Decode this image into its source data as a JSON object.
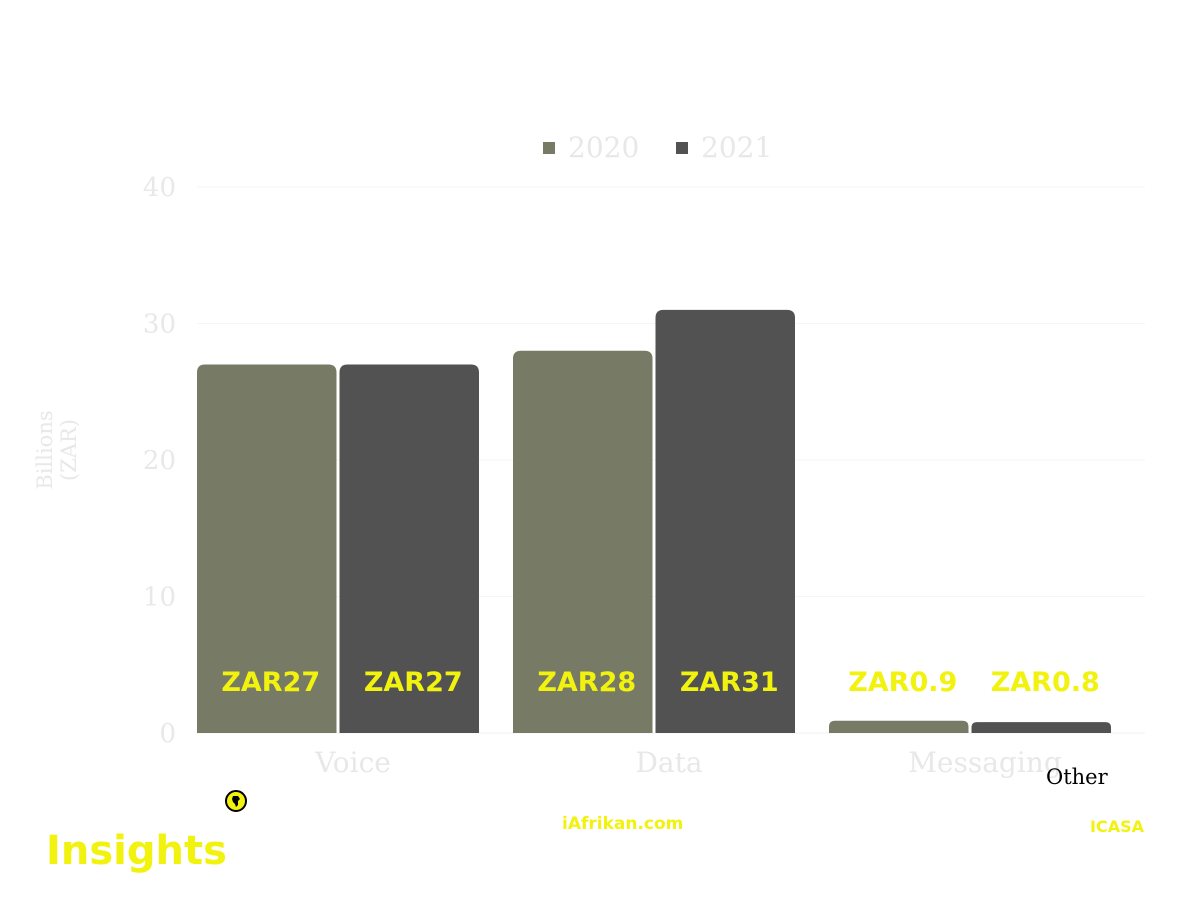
{
  "chart_data": {
    "type": "bar",
    "categories": [
      "Voice",
      "Data",
      "Messaging"
    ],
    "series": [
      {
        "name": "2020",
        "values": [
          27,
          28,
          0.9
        ],
        "labels": [
          "ZAR27",
          "ZAR28",
          "ZAR0.9"
        ],
        "color": "#777a64"
      },
      {
        "name": "2021",
        "values": [
          27,
          31,
          0.8
        ],
        "labels": [
          "ZAR27",
          "ZAR31",
          "ZAR0.8"
        ],
        "color": "#525252"
      }
    ],
    "ylabel": "Billions (ZAR)",
    "ylabel_lines": [
      "Billions",
      "(ZAR)"
    ],
    "ylim": [
      0,
      40
    ],
    "yticks": [
      0,
      10,
      20,
      30,
      40
    ],
    "legend_position": "top-center",
    "grid": true
  },
  "colors": {
    "accent_yellow": "#f2f20f",
    "axis_text": "#e8e8e8",
    "brand_icon_bg": "#f2f20f"
  },
  "footer": {
    "brand": "Insights",
    "site": "iAfrikan.com",
    "source": "ICASA",
    "extra_label": "Other",
    "logo_icon": "africa-map-icon"
  }
}
